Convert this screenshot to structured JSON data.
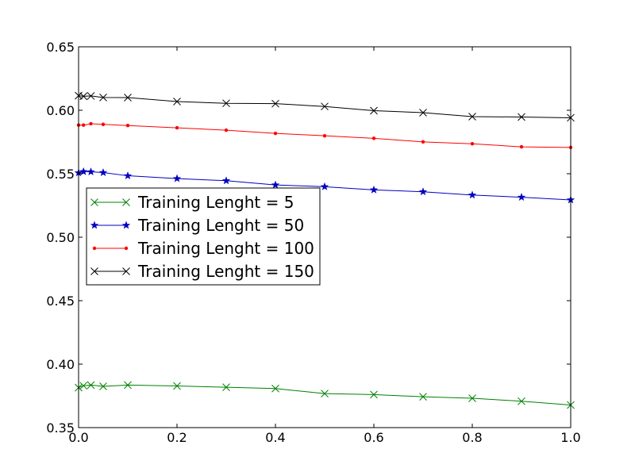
{
  "chart_data": {
    "type": "line",
    "title": "",
    "xlabel": "",
    "ylabel": "",
    "xlim": [
      0.0,
      1.0
    ],
    "ylim": [
      0.35,
      0.65
    ],
    "grid": false,
    "legend_position": "center-left",
    "x_ticks": [
      "0.0",
      "0.2",
      "0.4",
      "0.6",
      "0.8",
      "1.0"
    ],
    "y_ticks": [
      "0.35",
      "0.40",
      "0.45",
      "0.50",
      "0.55",
      "0.60",
      "0.65"
    ],
    "x": [
      0.0,
      0.01,
      0.025,
      0.05,
      0.1,
      0.2,
      0.3,
      0.4,
      0.5,
      0.6,
      0.7,
      0.8,
      0.9,
      1.0
    ],
    "series": [
      {
        "name": "Training Lenght = 5",
        "color": "#008000",
        "marker": "x",
        "values": [
          0.3815,
          0.383,
          0.3835,
          0.3825,
          0.3835,
          0.3828,
          0.3818,
          0.3808,
          0.3768,
          0.376,
          0.3743,
          0.3731,
          0.3708,
          0.3678
        ]
      },
      {
        "name": "Training Lenght = 50",
        "color": "#0000bf",
        "marker": "star",
        "values": [
          0.5507,
          0.5517,
          0.5515,
          0.5509,
          0.5484,
          0.5462,
          0.5445,
          0.5412,
          0.5398,
          0.5373,
          0.5358,
          0.5332,
          0.5315,
          0.5294
        ]
      },
      {
        "name": "Training Lenght = 100",
        "color": "#ff0000",
        "marker": "dot",
        "values": [
          0.5883,
          0.5883,
          0.5894,
          0.5889,
          0.588,
          0.5862,
          0.5843,
          0.5818,
          0.5799,
          0.5779,
          0.5751,
          0.5736,
          0.5712,
          0.5707
        ]
      },
      {
        "name": "Training Lenght = 150",
        "color": "#000000",
        "marker": "x",
        "values": [
          0.6115,
          0.611,
          0.6113,
          0.6101,
          0.61,
          0.6069,
          0.6055,
          0.6052,
          0.603,
          0.5997,
          0.5981,
          0.595,
          0.5947,
          0.5941
        ]
      }
    ]
  }
}
